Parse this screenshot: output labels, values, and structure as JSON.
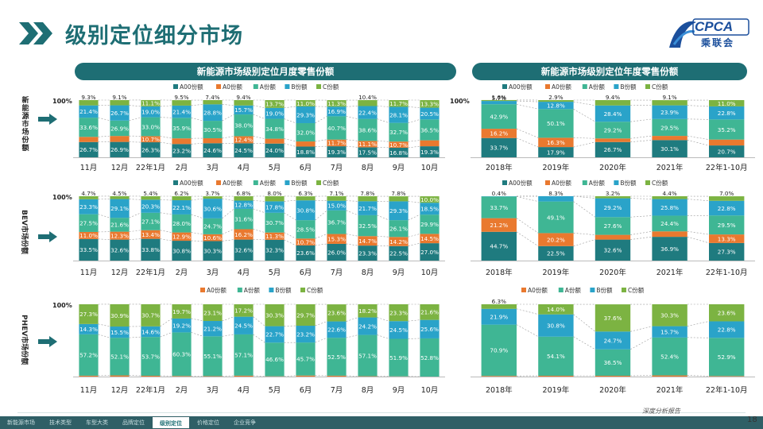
{
  "page": {
    "title": "级别定位细分市场",
    "logo_text": "CPCA",
    "logo_cn": "乘联会",
    "footer_note": "深度分析报告",
    "page_number": "18",
    "tabs": [
      "新能源市场",
      "技术类型",
      "车型大类",
      "品牌定位",
      "级别定位",
      "价格定位",
      "企业竞争"
    ],
    "active_tab": 4
  },
  "headers": {
    "monthly": "新能源市场级别定位月度零售份额",
    "yearly": "新能源市场级别定位年度零售份额"
  },
  "row_labels": [
    "新能源市场份额",
    "BEV市场份额",
    "PHEV市场份额"
  ],
  "colors": {
    "A00": "#1f7b7f",
    "A0": "#e9792f",
    "A": "#3fb694",
    "B": "#2aa3c9",
    "C": "#7cb342",
    "accent": "#1e6e74"
  },
  "chart_data": [
    {
      "type": "bar",
      "stacked": true,
      "title": "新能源市场级别定位月度零售份额",
      "ylabel": "100%",
      "categories": [
        "11月",
        "12月",
        "22年1月",
        "2月",
        "3月",
        "4月",
        "5月",
        "6月",
        "7月",
        "8月",
        "9月",
        "10月"
      ],
      "series": [
        {
          "name": "A00份额",
          "key": "A00",
          "values": [
            26.7,
            26.9,
            26.3,
            23.2,
            24.6,
            24.5,
            24.0,
            18.8,
            19.3,
            17.5,
            16.8,
            19.3
          ]
        },
        {
          "name": "A0份额",
          "key": "A0",
          "values": [
            9.0,
            10.4,
            10.7,
            9.9,
            8.7,
            12.4,
            8.5,
            8.9,
            11.7,
            11.1,
            10.7,
            10.4
          ]
        },
        {
          "name": "A份额",
          "key": "A",
          "values": [
            33.6,
            26.9,
            33.0,
            35.9,
            30.5,
            38.0,
            34.8,
            32.0,
            40.7,
            38.6,
            32.7,
            36.5
          ]
        },
        {
          "name": "B份额",
          "key": "B",
          "values": [
            21.4,
            26.7,
            19.0,
            21.4,
            28.8,
            15.7,
            19.0,
            29.3,
            16.9,
            22.4,
            28.1,
            20.5
          ]
        },
        {
          "name": "C份额",
          "key": "C",
          "values": [
            9.3,
            9.1,
            11.1,
            9.5,
            7.4,
            9.4,
            13.7,
            11.0,
            11.3,
            10.4,
            11.7,
            13.3
          ]
        }
      ]
    },
    {
      "type": "bar",
      "stacked": true,
      "title": "新能源市场级别定位年度零售份额",
      "ylabel": "100%",
      "categories": [
        "2018年",
        "2019年",
        "2020年",
        "2021年",
        "22年1-10月"
      ],
      "series": [
        {
          "name": "A00份额",
          "key": "A00",
          "values": [
            33.7,
            17.9,
            26.7,
            30.1,
            20.7
          ]
        },
        {
          "name": "A0份额",
          "key": "A0",
          "values": [
            16.2,
            16.3,
            6.3,
            7.3,
            10.3
          ]
        },
        {
          "name": "A份额",
          "key": "A",
          "values": [
            42.9,
            50.1,
            29.2,
            29.5,
            35.2
          ]
        },
        {
          "name": "B份额",
          "key": "B",
          "values": [
            5.7,
            12.8,
            28.4,
            23.9,
            22.8
          ]
        },
        {
          "name": "C份额",
          "key": "C",
          "values": [
            1.6,
            2.9,
            9.4,
            9.1,
            11.0
          ]
        }
      ]
    },
    {
      "type": "bar",
      "stacked": true,
      "ylabel": "100%",
      "categories": [
        "11月",
        "12月",
        "22年1月",
        "2月",
        "3月",
        "4月",
        "5月",
        "6月",
        "7月",
        "8月",
        "9月",
        "10月"
      ],
      "series": [
        {
          "name": "A00份额",
          "key": "A00",
          "values": [
            33.5,
            32.6,
            33.8,
            30.8,
            30.3,
            32.6,
            32.3,
            23.6,
            26.0,
            23.3,
            22.5,
            27.0
          ]
        },
        {
          "name": "A0份额",
          "key": "A0",
          "values": [
            11.0,
            12.3,
            13.4,
            12.9,
            10.6,
            16.2,
            11.3,
            10.7,
            15.3,
            14.7,
            14.2,
            14.5
          ]
        },
        {
          "name": "A份额",
          "key": "A",
          "values": [
            27.5,
            21.6,
            27.1,
            28.0,
            24.7,
            31.6,
            30.7,
            28.5,
            36.7,
            32.5,
            26.1,
            29.9
          ]
        },
        {
          "name": "B份额",
          "key": "B",
          "values": [
            23.3,
            29.1,
            20.3,
            22.1,
            30.6,
            12.8,
            17.8,
            30.8,
            15.0,
            21.7,
            29.3,
            18.5
          ]
        },
        {
          "name": "C份额",
          "key": "C",
          "values": [
            4.7,
            4.5,
            5.4,
            6.2,
            3.7,
            6.8,
            8.0,
            6.3,
            7.1,
            7.8,
            7.8,
            10.0
          ]
        }
      ]
    },
    {
      "type": "bar",
      "stacked": true,
      "categories": [
        "2018年",
        "2019年",
        "2020年",
        "2021年",
        "22年1-10月"
      ],
      "series": [
        {
          "name": "A00份额",
          "key": "A00",
          "values": [
            44.7,
            22.5,
            32.6,
            36.9,
            27.3
          ]
        },
        {
          "name": "A0份额",
          "key": "A0",
          "values": [
            21.2,
            20.2,
            7.4,
            8.5,
            13.3
          ]
        },
        {
          "name": "A份额",
          "key": "A",
          "values": [
            33.7,
            49.1,
            27.6,
            24.4,
            29.5
          ]
        },
        {
          "name": "B份额",
          "key": "B",
          "values": [
            0.4,
            8.3,
            29.2,
            25.8,
            22.8
          ]
        },
        {
          "name": "C份额",
          "key": "C",
          "values": [
            0.0,
            0.0,
            3.2,
            4.4,
            7.0
          ]
        }
      ]
    },
    {
      "type": "bar",
      "stacked": true,
      "ylabel": "100%",
      "categories": [
        "11月",
        "12月",
        "22年1月",
        "2月",
        "3月",
        "4月",
        "5月",
        "6月",
        "7月",
        "8月",
        "9月",
        "10月"
      ],
      "series": [
        {
          "name": "A0份额",
          "key": "A0",
          "values": [
            1.2,
            1.6,
            1.1,
            0.8,
            0.6,
            1.2,
            0.4,
            1.4,
            1.2,
            0.5,
            0.3,
            0.0
          ]
        },
        {
          "name": "A份额",
          "key": "A",
          "values": [
            57.2,
            52.1,
            53.7,
            60.3,
            55.1,
            57.1,
            46.6,
            45.7,
            52.5,
            57.1,
            51.9,
            52.8
          ]
        },
        {
          "name": "B份额",
          "key": "B",
          "values": [
            14.3,
            15.5,
            14.6,
            19.2,
            21.2,
            24.5,
            22.7,
            23.2,
            22.6,
            24.2,
            24.5,
            25.6
          ]
        },
        {
          "name": "C份额",
          "key": "C",
          "values": [
            27.3,
            30.9,
            30.7,
            19.7,
            23.1,
            17.2,
            30.3,
            29.7,
            23.6,
            18.2,
            23.3,
            21.6
          ]
        }
      ]
    },
    {
      "type": "bar",
      "stacked": true,
      "categories": [
        "2018年",
        "2019年",
        "2020年",
        "2021年",
        "22年1-10月"
      ],
      "series": [
        {
          "name": "A0份额",
          "key": "A0",
          "values": [
            0.9,
            1.1,
            1.1,
            1.6,
            0.7
          ]
        },
        {
          "name": "A份额",
          "key": "A",
          "values": [
            70.9,
            54.1,
            36.5,
            52.4,
            52.9
          ]
        },
        {
          "name": "B份额",
          "key": "B",
          "values": [
            21.9,
            30.8,
            24.7,
            15.7,
            22.8
          ]
        },
        {
          "name": "C份额",
          "key": "C",
          "values": [
            6.3,
            14.0,
            37.6,
            30.3,
            23.6
          ]
        }
      ]
    }
  ]
}
